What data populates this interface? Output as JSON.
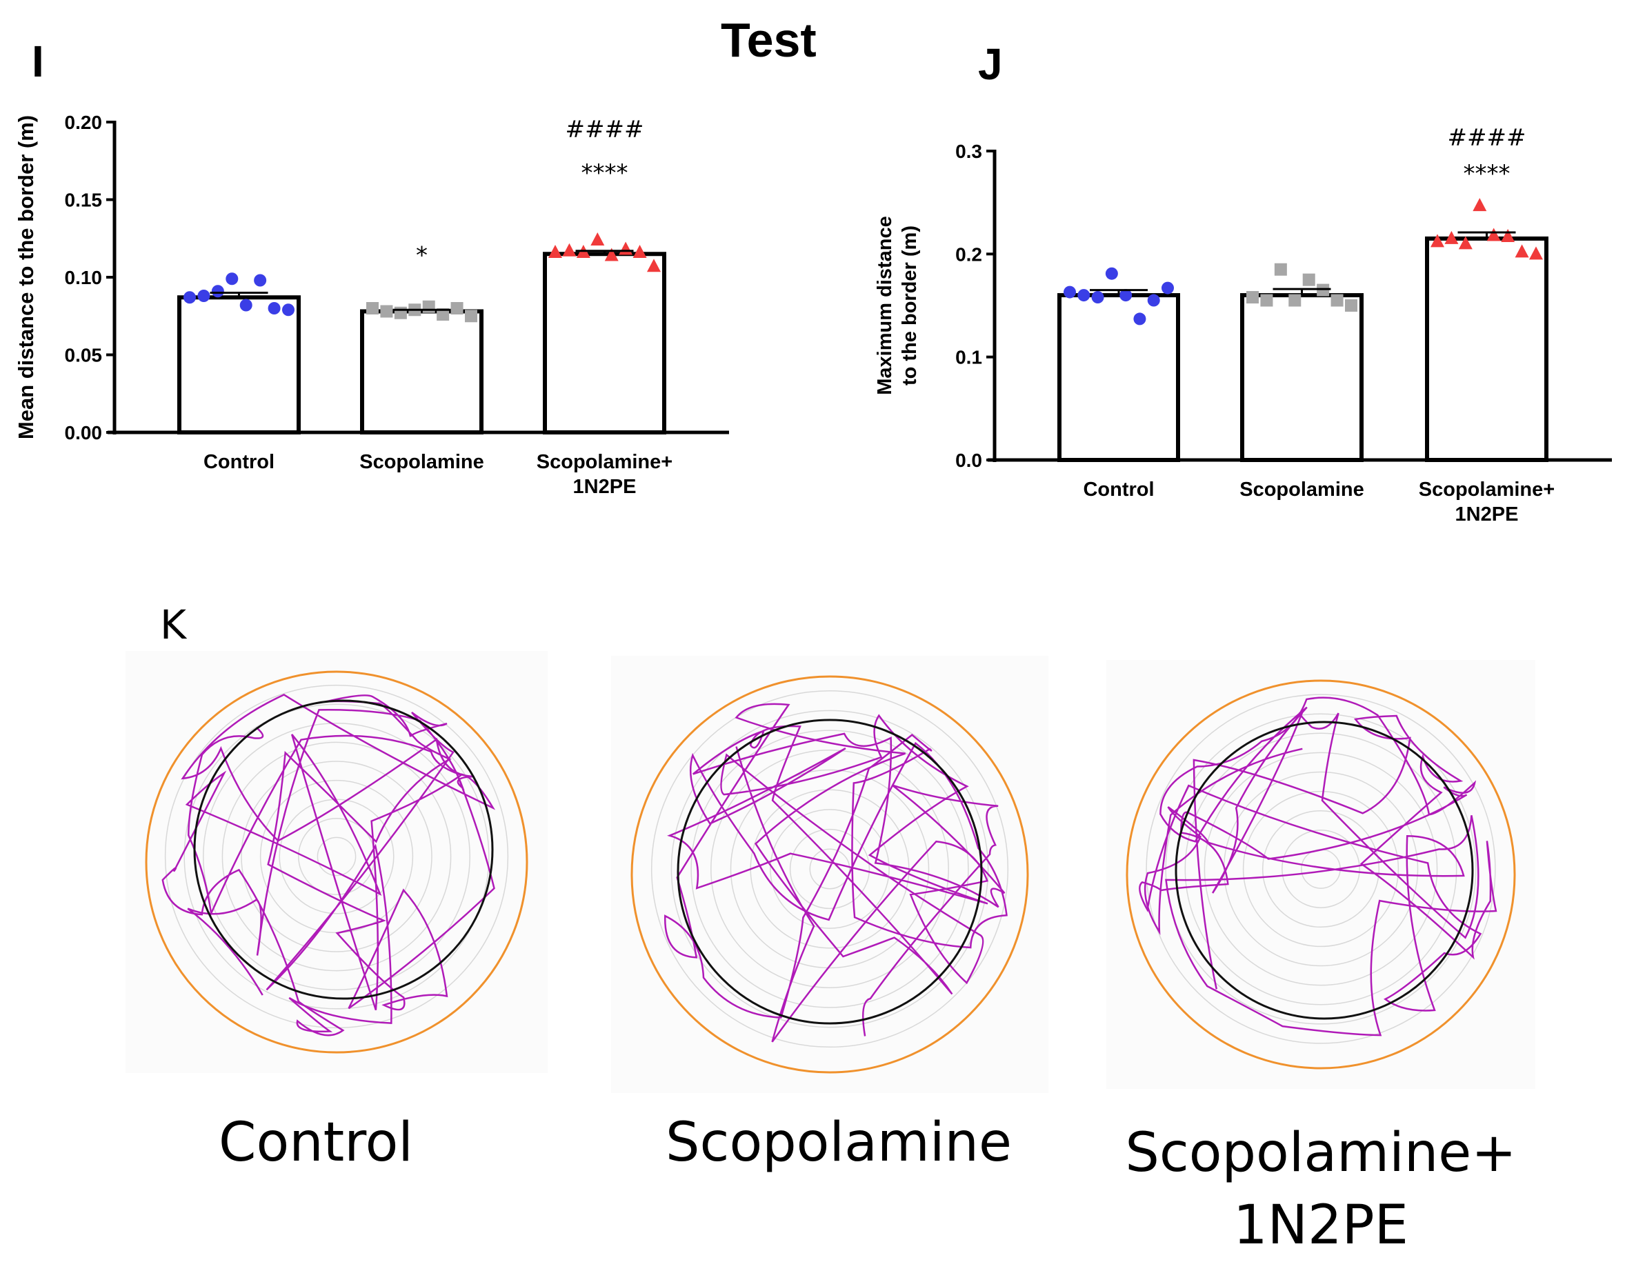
{
  "title": "Test",
  "panels": {
    "I": "I",
    "J": "J",
    "K": "K"
  },
  "colors": {
    "control": "#3a3ee6",
    "scopolamine": "#a6a6a6",
    "scop_1n2pe": "#f03a3a",
    "arena_border": "#f0912c",
    "track": "#b01ab8",
    "zone": "#111111"
  },
  "chart_data": [
    {
      "type": "bar",
      "panel": "I",
      "title": "",
      "ylabel": "Mean distance to the border (m)",
      "xlabel": "",
      "categories": [
        "Control",
        "Scopolamine",
        "Scopolamine+\n1N2PE"
      ],
      "category_lines": [
        [
          "Control"
        ],
        [
          "Scopolamine"
        ],
        [
          "Scopolamine+",
          "1N2PE"
        ]
      ],
      "values": [
        0.087,
        0.078,
        0.115
      ],
      "sem": [
        0.003,
        0.001,
        0.002
      ],
      "points": [
        [
          0.087,
          0.088,
          0.091,
          0.099,
          0.082,
          0.098,
          0.08,
          0.079
        ],
        [
          0.08,
          0.078,
          0.077,
          0.079,
          0.081,
          0.076,
          0.08,
          0.075
        ],
        [
          0.116,
          0.117,
          0.116,
          0.124,
          0.114,
          0.118,
          0.116,
          0.107
        ]
      ],
      "markers": [
        "circle",
        "square",
        "triangle"
      ],
      "ylim": [
        0,
        0.2
      ],
      "yticks": [
        "0.00",
        "0.05",
        "0.10",
        "0.15",
        "0.20"
      ],
      "annotations": [
        {
          "category": 1,
          "text": "*"
        },
        {
          "category": 2,
          "text": "****"
        },
        {
          "category": 2,
          "text": "####"
        }
      ]
    },
    {
      "type": "bar",
      "panel": "J",
      "title": "",
      "ylabel": "Maximum distance\nto the border (m)",
      "ylabel_lines": [
        "Maximum distance",
        "to the border (m)"
      ],
      "xlabel": "",
      "categories": [
        "Control",
        "Scopolamine",
        "Scopolamine+\n1N2PE"
      ],
      "category_lines": [
        [
          "Control"
        ],
        [
          "Scopolamine"
        ],
        [
          "Scopolamine+",
          "1N2PE"
        ]
      ],
      "values": [
        0.16,
        0.16,
        0.215
      ],
      "sem": [
        0.005,
        0.006,
        0.006
      ],
      "points": [
        [
          0.163,
          0.16,
          0.158,
          0.181,
          0.16,
          0.137,
          0.155,
          0.167
        ],
        [
          0.158,
          0.155,
          0.185,
          0.155,
          0.175,
          0.165,
          0.155,
          0.15
        ],
        [
          0.212,
          0.215,
          0.21,
          0.247,
          0.218,
          0.217,
          0.202,
          0.2
        ]
      ],
      "markers": [
        "circle",
        "square",
        "triangle"
      ],
      "ylim": [
        0,
        0.3
      ],
      "yticks": [
        "0.0",
        "0.1",
        "0.2",
        "0.3"
      ],
      "annotations": [
        {
          "category": 2,
          "text": "****"
        },
        {
          "category": 2,
          "text": "####"
        }
      ]
    }
  ],
  "arenas": [
    {
      "label": "Control"
    },
    {
      "label": "Scopolamine"
    },
    {
      "label_lines": [
        "Scopolamine+",
        "1N2PE"
      ]
    }
  ]
}
